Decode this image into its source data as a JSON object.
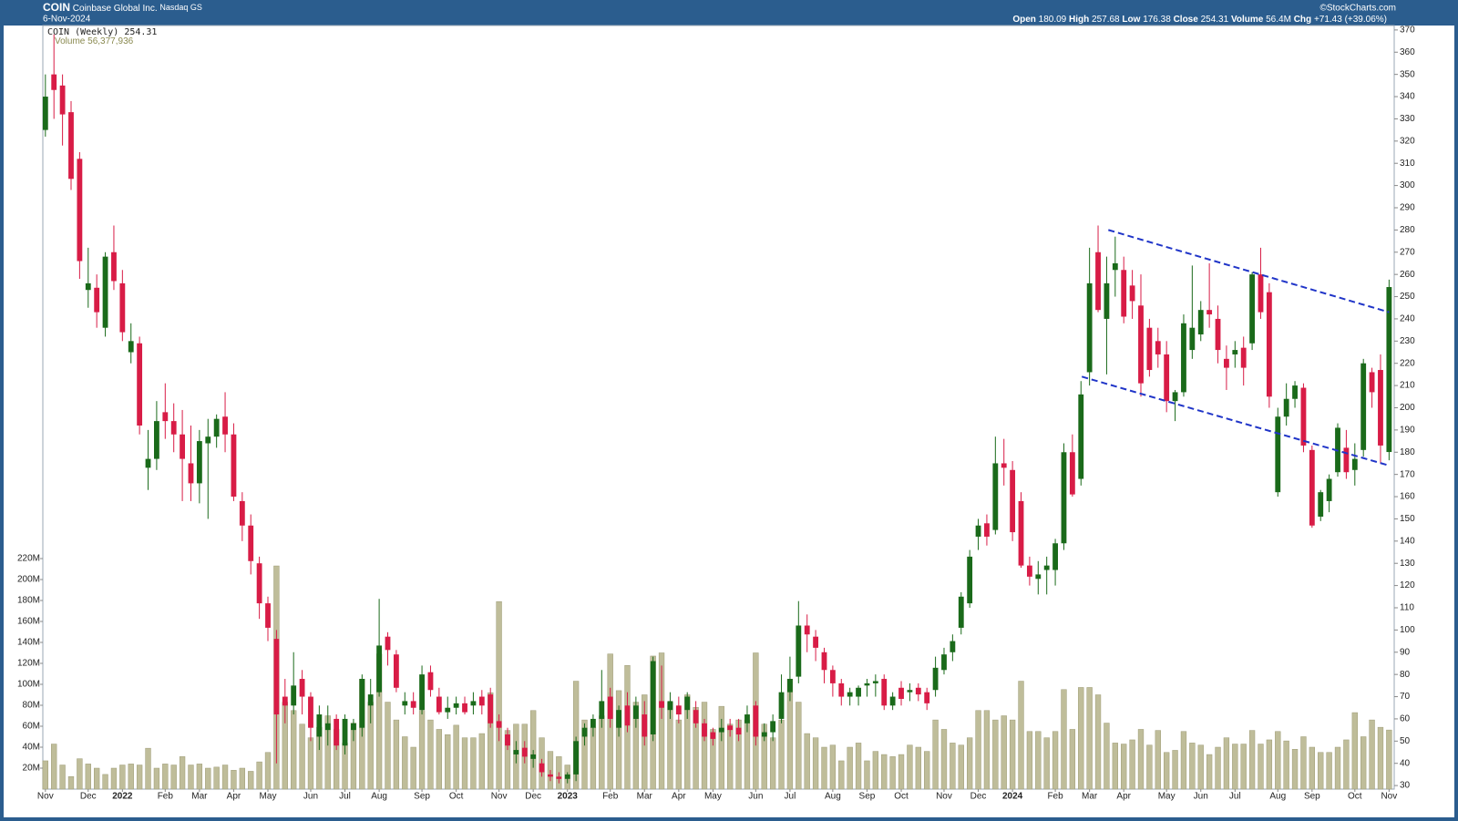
{
  "chart_data": {
    "type": "candlestick",
    "title": "COIN",
    "subtitle": "Coinbase Global Inc.",
    "exchange": "Nasdaq GS",
    "date": "6-Nov-2024",
    "credit": "©StockCharts.com",
    "stats": [
      {
        "label": "Open",
        "value": 180.09
      },
      {
        "label": "High",
        "value": 257.68
      },
      {
        "label": "Low",
        "value": 176.38
      },
      {
        "label": "Close",
        "value": 254.31
      },
      {
        "label": "Volume",
        "value": 56.4,
        "value_label": "56.4M"
      },
      {
        "label": "Chg",
        "value": 71.43,
        "value_label": "+71.43 (+39.06%)"
      }
    ],
    "price_legend": "COIN (Weekly)",
    "price_last": 254.31,
    "volume_legend": "Volume",
    "volume_last": 56377936,
    "volume_last_label": "56,377,936",
    "up_color": "#1a6a1a",
    "down_color": "#d81c46",
    "volume_color": "#bfbd9a",
    "trend_color": "#2035c8",
    "open": [
      325,
      350,
      345,
      333,
      312,
      253,
      254,
      236,
      270,
      256,
      225,
      229,
      173,
      177,
      198,
      194,
      188,
      175,
      166,
      184,
      187,
      196,
      188,
      158,
      147,
      130,
      112,
      96,
      70,
      66,
      78,
      70,
      52,
      55,
      60,
      48,
      55,
      56,
      66,
      72,
      97,
      89,
      66,
      68,
      64,
      81,
      70,
      63,
      65,
      67,
      66,
      70,
      71,
      59,
      53,
      44,
      47,
      42,
      40,
      35,
      34,
      33,
      35,
      52,
      56,
      60,
      70,
      56,
      66,
      60,
      62,
      53,
      68,
      64,
      66,
      64,
      64,
      58,
      54,
      54,
      57,
      56,
      58,
      66,
      52,
      54,
      60,
      72,
      79,
      102,
      97,
      90,
      82,
      76,
      70,
      70,
      75,
      76,
      78,
      66,
      74,
      72,
      74,
      72,
      73,
      82,
      90,
      101,
      112,
      142,
      148,
      145,
      175,
      172,
      158,
      129,
      123,
      127,
      127,
      139,
      180,
      168,
      216,
      270,
      240,
      262,
      262,
      255,
      246,
      236,
      230,
      224,
      203,
      207,
      226,
      233,
      244,
      240,
      222,
      224,
      227,
      229,
      260,
      252,
      162,
      196,
      204,
      209,
      181,
      151,
      158,
      171,
      182,
      172,
      181,
      216,
      217,
      180.09
    ],
    "high": [
      350,
      368,
      350,
      338,
      315,
      272,
      260,
      270,
      282,
      262,
      238,
      232,
      190,
      203,
      211,
      202,
      199,
      192,
      190,
      195,
      197,
      207,
      193,
      162,
      152,
      133,
      115,
      100,
      78,
      90,
      82,
      72,
      66,
      66,
      62,
      62,
      60,
      80,
      78,
      114,
      99,
      91,
      72,
      72,
      84,
      84,
      74,
      70,
      70,
      70,
      72,
      73,
      74,
      62,
      56,
      50,
      50,
      46,
      42,
      37,
      36,
      36,
      52,
      58,
      62,
      82,
      74,
      66,
      72,
      70,
      68,
      88,
      84,
      72,
      70,
      72,
      68,
      60,
      56,
      60,
      60,
      60,
      66,
      68,
      58,
      62,
      80,
      88,
      113,
      107,
      100,
      92,
      84,
      78,
      74,
      75,
      78,
      80,
      80,
      72,
      77,
      76,
      76,
      74,
      88,
      92,
      98,
      117,
      136,
      150,
      152,
      187,
      186,
      176,
      162,
      133,
      131,
      133,
      141,
      184,
      188,
      212,
      272,
      282,
      268,
      277,
      268,
      262,
      260,
      240,
      236,
      230,
      208,
      242,
      264,
      248,
      265,
      246,
      228,
      230,
      232,
      261,
      272,
      256,
      200,
      211,
      212,
      211,
      183,
      163,
      170,
      193,
      190,
      184,
      222,
      218,
      224,
      257.68
    ],
    "low": [
      322,
      330,
      318,
      298,
      258,
      245,
      236,
      232,
      253,
      230,
      220,
      188,
      163,
      172,
      186,
      180,
      158,
      158,
      157,
      150,
      182,
      180,
      158,
      140,
      125,
      105,
      95,
      40,
      58,
      62,
      62,
      50,
      46,
      48,
      46,
      44,
      50,
      52,
      58,
      70,
      84,
      72,
      62,
      62,
      62,
      70,
      62,
      60,
      62,
      62,
      62,
      62,
      56,
      50,
      46,
      40,
      40,
      38,
      34,
      32,
      31,
      31,
      32,
      48,
      52,
      56,
      56,
      52,
      54,
      56,
      48,
      50,
      60,
      60,
      58,
      60,
      56,
      50,
      48,
      50,
      52,
      50,
      54,
      48,
      50,
      50,
      58,
      68,
      76,
      90,
      86,
      76,
      70,
      66,
      66,
      66,
      70,
      70,
      64,
      64,
      66,
      68,
      68,
      64,
      70,
      80,
      86,
      98,
      110,
      136,
      138,
      143,
      165,
      140,
      128,
      120,
      116,
      116,
      120,
      136,
      160,
      165,
      210,
      243,
      215,
      250,
      238,
      240,
      205,
      214,
      218,
      198,
      194,
      205,
      222,
      230,
      236,
      220,
      208,
      218,
      210,
      226,
      240,
      200,
      160,
      192,
      200,
      180,
      146,
      149,
      153,
      169,
      168,
      165,
      178,
      200,
      175,
      176.38
    ],
    "close": [
      340,
      343,
      332,
      303,
      266,
      256,
      243,
      268,
      257,
      234,
      230,
      192,
      177,
      194,
      194,
      188,
      177,
      166,
      185,
      187,
      195,
      188,
      160,
      147,
      131,
      112,
      101,
      62,
      66,
      75,
      70,
      56,
      62,
      58,
      48,
      60,
      58,
      78,
      71,
      93,
      91,
      74,
      68,
      65,
      80,
      73,
      63,
      65,
      67,
      63,
      68,
      66,
      58,
      56,
      48,
      46,
      43,
      44,
      36,
      34,
      33,
      35,
      50,
      56,
      60,
      68,
      60,
      64,
      57,
      66,
      52,
      86,
      65,
      68,
      62,
      70,
      58,
      52,
      51,
      56,
      55,
      53,
      62,
      52,
      54,
      59,
      72,
      78,
      102,
      98,
      92,
      82,
      76,
      70,
      72,
      74,
      76,
      77,
      66,
      70,
      69,
      73,
      71,
      67,
      83,
      89,
      95,
      115,
      133,
      147,
      142,
      175,
      173,
      144,
      129,
      124,
      125,
      129,
      139,
      180,
      161,
      206,
      256,
      244,
      256,
      265,
      241,
      248,
      211,
      217,
      224,
      203,
      207,
      238,
      236,
      244,
      242,
      226,
      218,
      226,
      218,
      260,
      243,
      205,
      196,
      204,
      210,
      183,
      147,
      162,
      168,
      191,
      171,
      177,
      220,
      207,
      183,
      254.31
    ],
    "volume": [
      27,
      43,
      23,
      12,
      29,
      24,
      20,
      14,
      20,
      23,
      24,
      23,
      39,
      20,
      24,
      23,
      31,
      23,
      24,
      20,
      21,
      23,
      18,
      20,
      17,
      26,
      35,
      213,
      83,
      75,
      62,
      49,
      59,
      70,
      57,
      44,
      63,
      105,
      83,
      129,
      83,
      66,
      50,
      40,
      75,
      66,
      57,
      52,
      61,
      49,
      49,
      53,
      92,
      179,
      56,
      62,
      62,
      75,
      49,
      36,
      31,
      23,
      103,
      66,
      59,
      70,
      129,
      94,
      118,
      83,
      90,
      127,
      130,
      83,
      66,
      90,
      78,
      83,
      57,
      79,
      62,
      66,
      66,
      130,
      62,
      49,
      66,
      105,
      83,
      53,
      49,
      40,
      42,
      27,
      40,
      44,
      27,
      36,
      33,
      31,
      33,
      42,
      40,
      36,
      66,
      57,
      44,
      42,
      49,
      75,
      75,
      66,
      70,
      66,
      103,
      55,
      55,
      49,
      55,
      95,
      57,
      97,
      97,
      90,
      63,
      44,
      43,
      47,
      57,
      42,
      56,
      35,
      37,
      55,
      44,
      42,
      33,
      40,
      49,
      43,
      43,
      56,
      43,
      47,
      55,
      46,
      38,
      50,
      40,
      35,
      35,
      40,
      47,
      73,
      50,
      66,
      59,
      56.4
    ],
    "xlim": [
      -0.3,
      157.6
    ],
    "xticks": [
      {
        "value": 0,
        "label": "Nov"
      },
      {
        "value": 5,
        "label": "Dec"
      },
      {
        "value": 9,
        "label": "2022"
      },
      {
        "value": 14,
        "label": "Feb"
      },
      {
        "value": 18,
        "label": "Mar"
      },
      {
        "value": 22,
        "label": "Apr"
      },
      {
        "value": 26,
        "label": "May"
      },
      {
        "value": 31,
        "label": "Jun"
      },
      {
        "value": 35,
        "label": "Jul"
      },
      {
        "value": 39,
        "label": "Aug"
      },
      {
        "value": 44,
        "label": "Sep"
      },
      {
        "value": 48,
        "label": "Oct"
      },
      {
        "value": 53,
        "label": "Nov"
      },
      {
        "value": 57,
        "label": "Dec"
      },
      {
        "value": 61,
        "label": "2023"
      },
      {
        "value": 66,
        "label": "Feb"
      },
      {
        "value": 70,
        "label": "Mar"
      },
      {
        "value": 74,
        "label": "Apr"
      },
      {
        "value": 78,
        "label": "May"
      },
      {
        "value": 83,
        "label": "Jun"
      },
      {
        "value": 87,
        "label": "Jul"
      },
      {
        "value": 92,
        "label": "Aug"
      },
      {
        "value": 96,
        "label": "Sep"
      },
      {
        "value": 100,
        "label": "Oct"
      },
      {
        "value": 105,
        "label": "Nov"
      },
      {
        "value": 109,
        "label": "Dec"
      },
      {
        "value": 113,
        "label": "2024"
      },
      {
        "value": 118,
        "label": "Feb"
      },
      {
        "value": 122,
        "label": "Mar"
      },
      {
        "value": 126,
        "label": "Apr"
      },
      {
        "value": 131,
        "label": "May"
      },
      {
        "value": 135,
        "label": "Jun"
      },
      {
        "value": 139,
        "label": "Jul"
      },
      {
        "value": 144,
        "label": "Aug"
      },
      {
        "value": 148,
        "label": "Sep"
      },
      {
        "value": 153,
        "label": "Oct"
      },
      {
        "value": 157,
        "label": "Nov"
      }
    ],
    "ylim": [
      28.4,
      372
    ],
    "yticks": [
      30,
      40,
      50,
      60,
      70,
      80,
      90,
      100,
      110,
      120,
      130,
      140,
      150,
      160,
      170,
      180,
      190,
      200,
      210,
      220,
      230,
      240,
      250,
      260,
      270,
      280,
      290,
      300,
      310,
      320,
      330,
      340,
      350,
      360,
      370
    ],
    "volume_lim": [
      0,
      728.7
    ],
    "volume_ticks": [
      {
        "value": 20,
        "label": "20M"
      },
      {
        "value": 40,
        "label": "40M"
      },
      {
        "value": 60,
        "label": "60M"
      },
      {
        "value": 80,
        "label": "80M"
      },
      {
        "value": 100,
        "label": "100M"
      },
      {
        "value": 120,
        "label": "120M"
      },
      {
        "value": 140,
        "label": "140M"
      },
      {
        "value": 160,
        "label": "160M"
      },
      {
        "value": 180,
        "label": "180M"
      },
      {
        "value": 200,
        "label": "200M"
      },
      {
        "value": 220,
        "label": "220M"
      }
    ],
    "trendlines": [
      {
        "x": [
          124.2,
          157
        ],
        "y": [
          280,
          243
        ]
      },
      {
        "x": [
          121.1,
          157
        ],
        "y": [
          214,
          174
        ]
      }
    ]
  }
}
